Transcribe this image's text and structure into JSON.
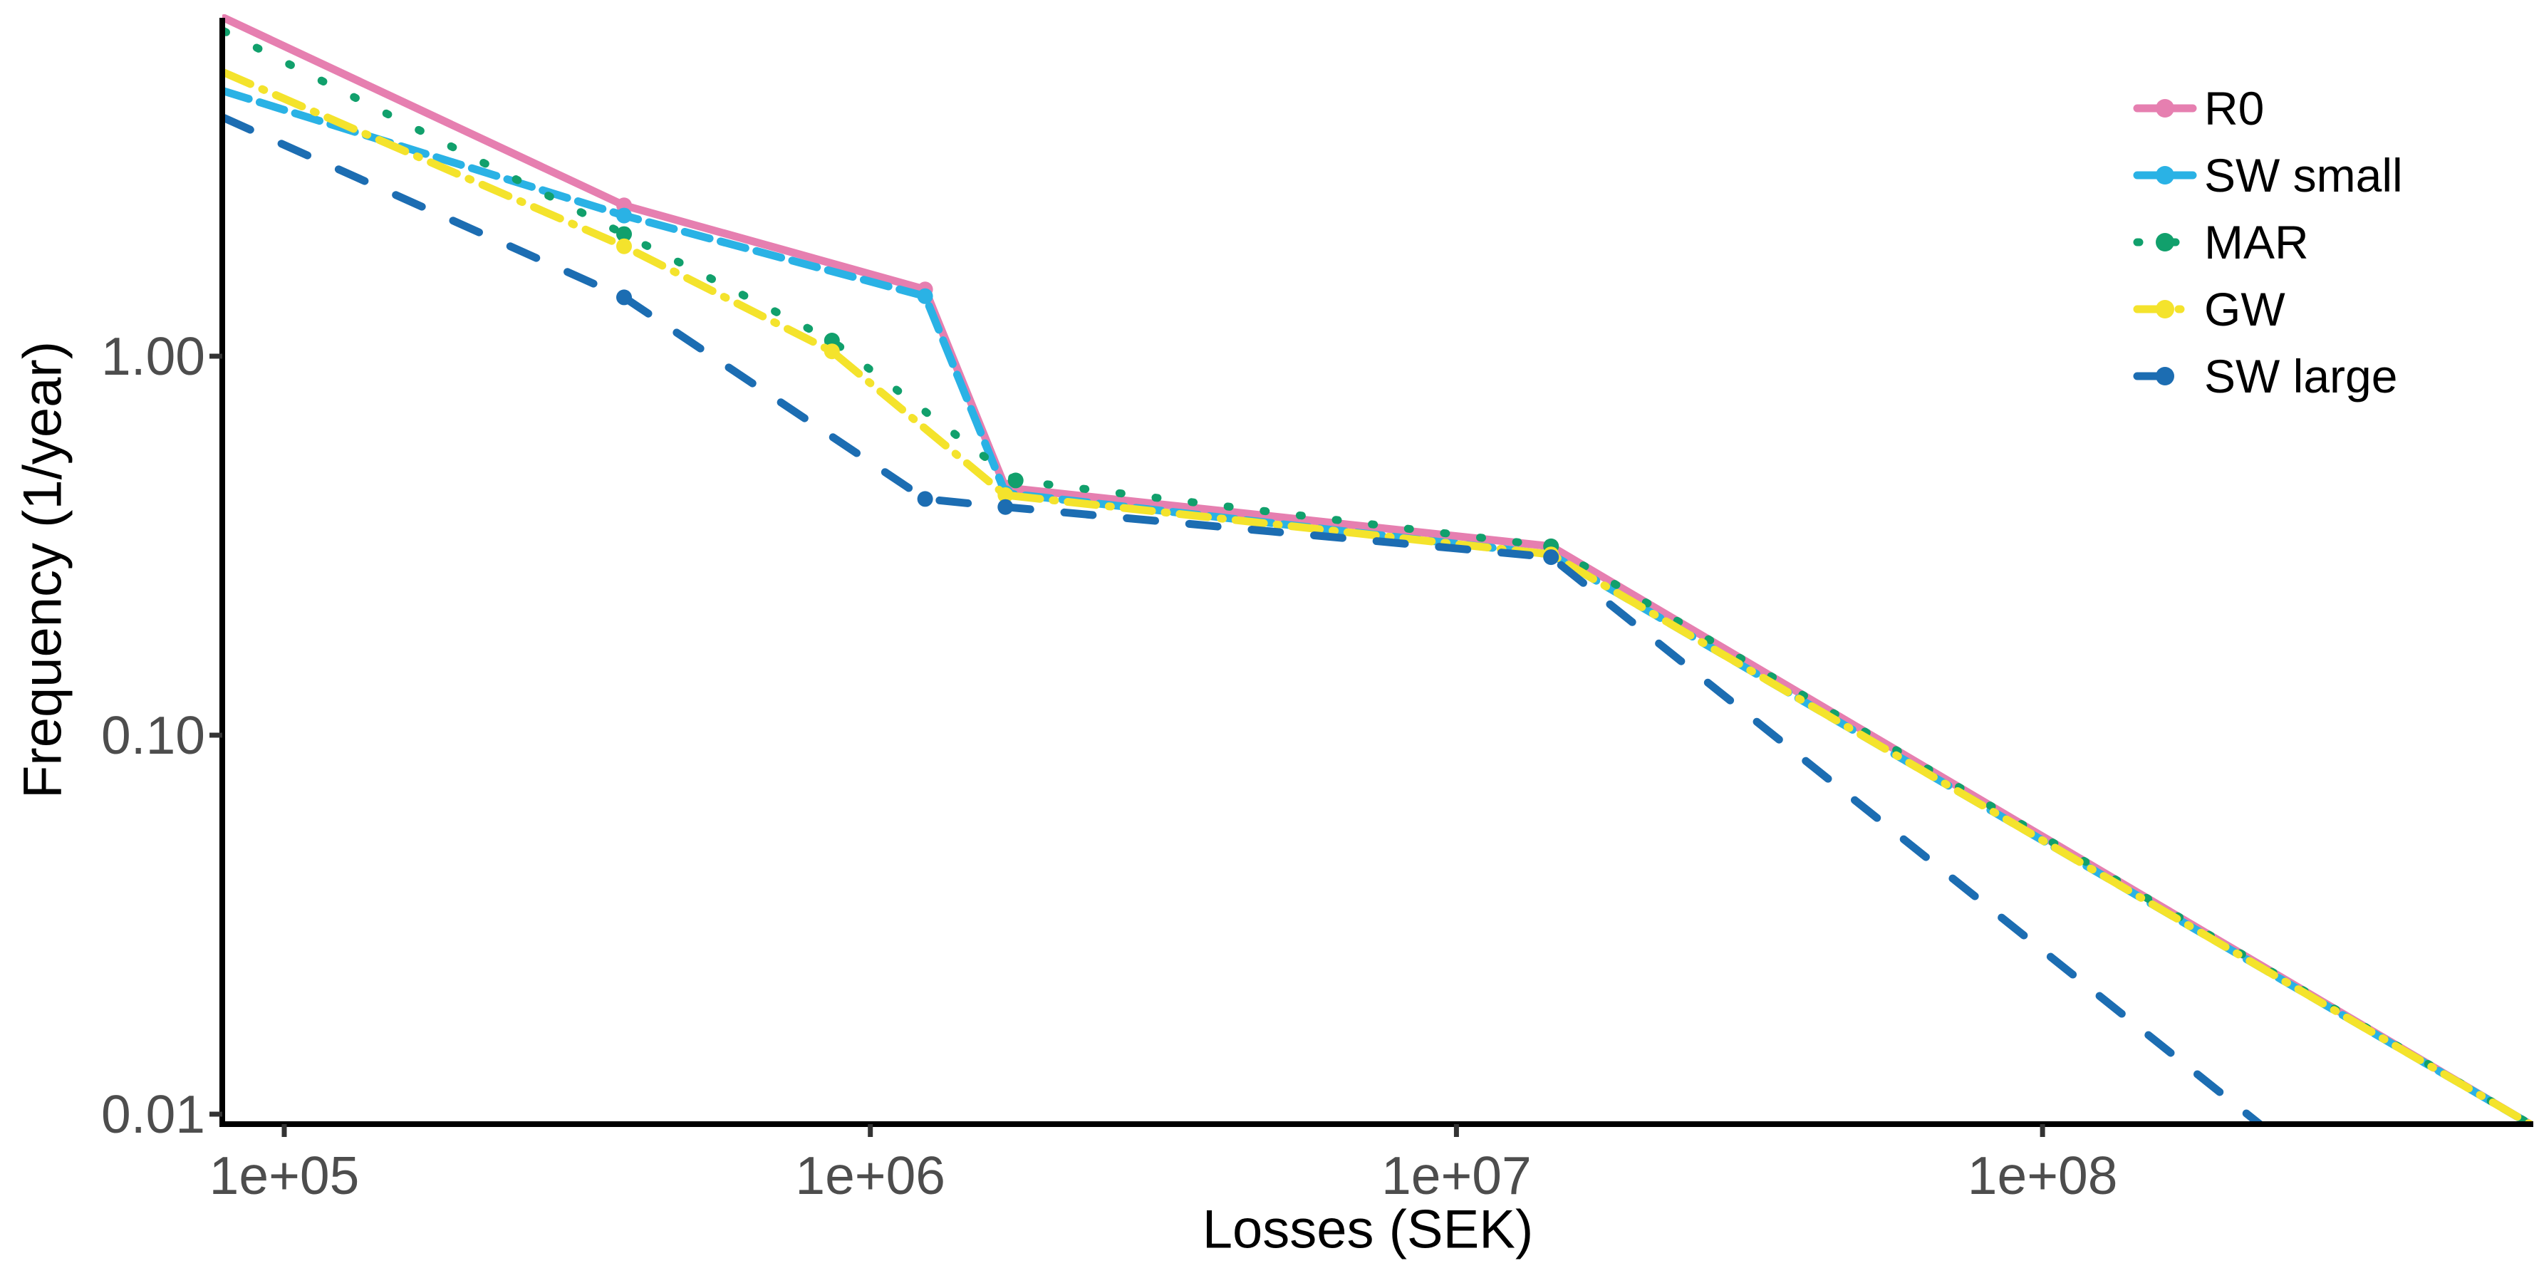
{
  "figure": {
    "background": "#ffffff",
    "axis_line_color": "#000000",
    "tick_color": "#333333",
    "tick_label_color": "#4d4d4d"
  },
  "chart_data": {
    "type": "line",
    "title": "",
    "xlabel": "Losses (SEK)",
    "ylabel": "Frequency (1/year)",
    "x_scale": "log10",
    "y_scale": "log10",
    "x_range": [
      79000,
      680000000
    ],
    "y_range": [
      0.0094,
      7.8
    ],
    "grid": "off",
    "x_ticks": [
      {
        "value": 100000,
        "label": "1e+05"
      },
      {
        "value": 1000000,
        "label": "1e+06"
      },
      {
        "value": 10000000,
        "label": "1e+07"
      },
      {
        "value": 100000000,
        "label": "1e+08"
      }
    ],
    "y_ticks": [
      {
        "value": 1.0,
        "label": "1.00"
      },
      {
        "value": 0.1,
        "label": "0.10"
      },
      {
        "value": 0.01,
        "label": "0.01"
      }
    ],
    "legend": {
      "position": "right",
      "entries": [
        "R0",
        "SW small",
        "MAR",
        "GW",
        "SW large"
      ]
    },
    "series": [
      {
        "name": "R0",
        "color": "#E67FB0",
        "linetype": "solid",
        "points": [
          [
            79000,
            7.8
          ],
          [
            380000,
            2.5
          ],
          [
            1240000,
            1.5
          ],
          [
            1700000,
            0.45
          ],
          [
            14500000,
            0.315
          ],
          [
            680000000,
            0.0094
          ]
        ]
      },
      {
        "name": "SW small",
        "color": "#2AB2E5",
        "linetype": "dashed",
        "points": [
          [
            79000,
            5.0
          ],
          [
            380000,
            2.35
          ],
          [
            1240000,
            1.44
          ],
          [
            1700000,
            0.435
          ],
          [
            14500000,
            0.3
          ],
          [
            680000000,
            0.0094
          ]
        ]
      },
      {
        "name": "MAR",
        "color": "#11A06C",
        "linetype": "dotted",
        "points": [
          [
            79000,
            7.2
          ],
          [
            380000,
            2.1
          ],
          [
            860000,
            1.1
          ],
          [
            1770000,
            0.47
          ],
          [
            14500000,
            0.315
          ],
          [
            680000000,
            0.0094
          ]
        ]
      },
      {
        "name": "GW",
        "color": "#F4E32C",
        "linetype": "dashdot",
        "points": [
          [
            79000,
            5.6
          ],
          [
            380000,
            1.95
          ],
          [
            860000,
            1.03
          ],
          [
            1700000,
            0.43
          ],
          [
            14500000,
            0.3
          ],
          [
            680000000,
            0.0094
          ]
        ]
      },
      {
        "name": "SW large",
        "color": "#1C6DB2",
        "linetype": "longdash",
        "points": [
          [
            79000,
            4.25
          ],
          [
            380000,
            1.43
          ],
          [
            1240000,
            0.42
          ],
          [
            1700000,
            0.4
          ],
          [
            14500000,
            0.295
          ],
          [
            235000000,
            0.0094
          ]
        ]
      }
    ]
  }
}
